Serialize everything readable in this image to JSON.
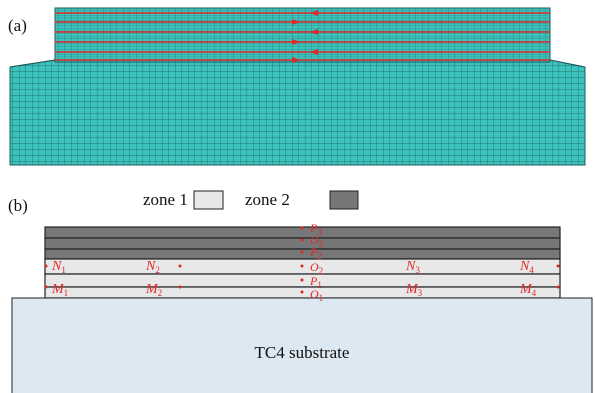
{
  "panel_a": {
    "label": "(a)"
  },
  "panel_b": {
    "label": "(b)",
    "legend": [
      {
        "label": "zone 1"
      },
      {
        "label": "zone 2"
      }
    ],
    "substrate": "TC4 substrate",
    "points": [
      {
        "base": "N",
        "sub": "1"
      },
      {
        "base": "N",
        "sub": "2"
      },
      {
        "base": "N",
        "sub": "3"
      },
      {
        "base": "N",
        "sub": "4"
      },
      {
        "base": "M",
        "sub": "1"
      },
      {
        "base": "M",
        "sub": "2"
      },
      {
        "base": "M",
        "sub": "3"
      },
      {
        "base": "M",
        "sub": "4"
      },
      {
        "base": "P",
        "sub": "3"
      },
      {
        "base": "O",
        "sub": "3"
      },
      {
        "base": "P",
        "sub": "2"
      },
      {
        "base": "O",
        "sub": "2"
      },
      {
        "base": "P",
        "sub": "1"
      },
      {
        "base": "O",
        "sub": "1"
      }
    ]
  }
}
